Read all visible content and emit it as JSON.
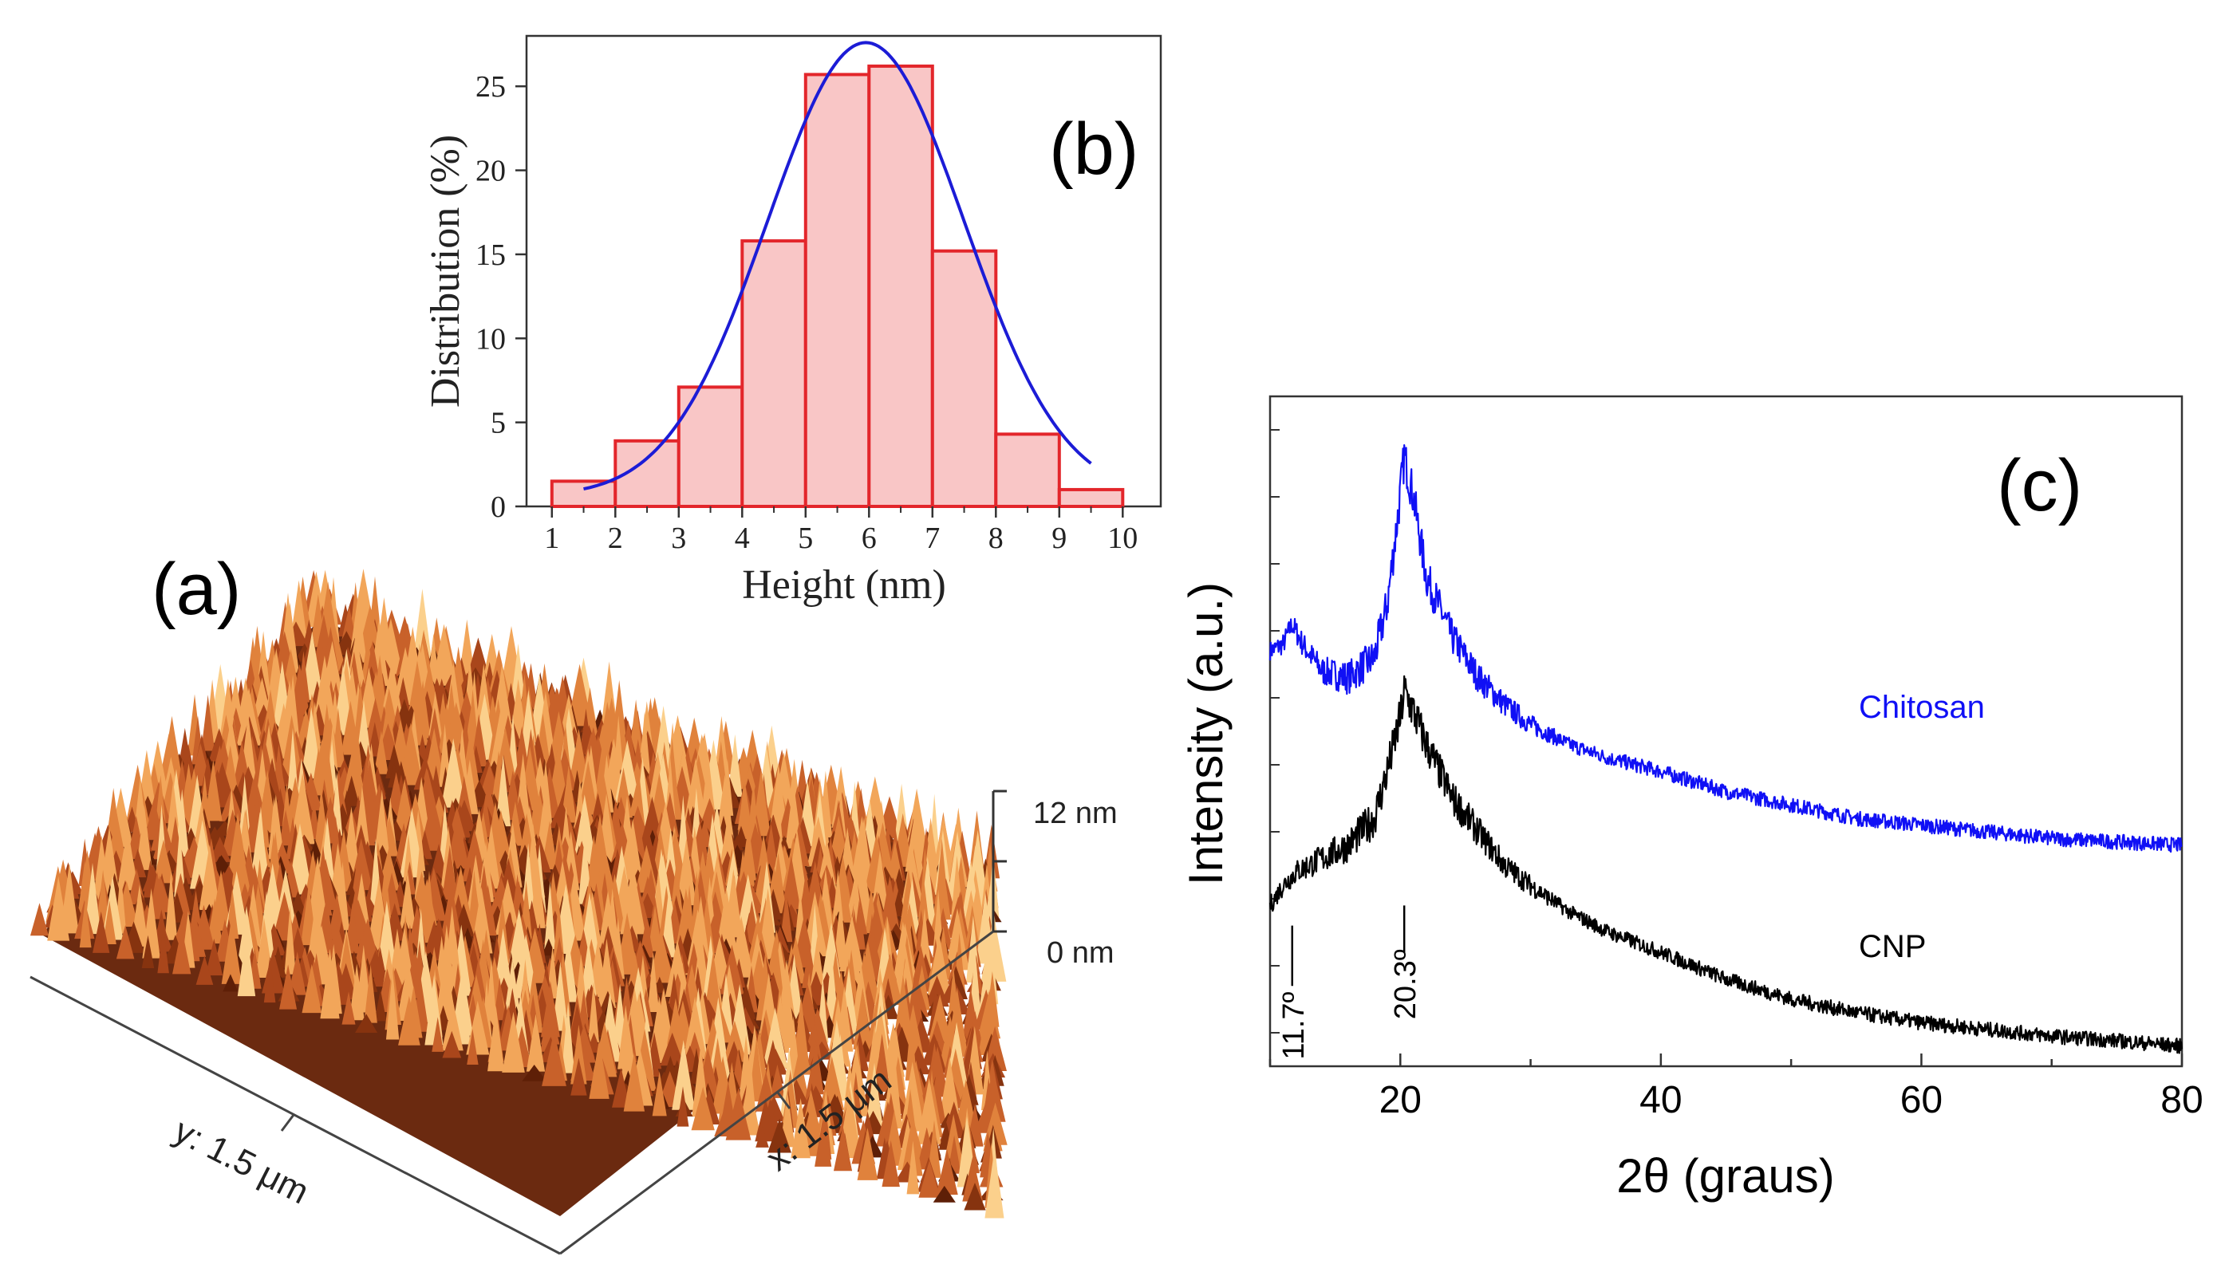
{
  "panels": {
    "a": {
      "label": "(a)",
      "scale_top": "12 nm",
      "scale_bottom": "0 nm",
      "y_axis": "y: 1.5 μm",
      "x_axis": "x: 1.5 μm"
    },
    "b": {
      "label": "(b)"
    },
    "c": {
      "label": "(c)"
    }
  },
  "chart_data": [
    {
      "panel": "b",
      "type": "bar",
      "title": "",
      "xlabel": "Height (nm)",
      "ylabel": "Distribution (%)",
      "xlim": [
        0.6,
        10.6
      ],
      "ylim": [
        0,
        28
      ],
      "xticks": [
        1,
        2,
        3,
        4,
        5,
        6,
        7,
        8,
        9,
        10
      ],
      "yticks": [
        0,
        5,
        10,
        15,
        20,
        25
      ],
      "bins": [
        {
          "from": 1,
          "to": 2,
          "value": 1.5
        },
        {
          "from": 2,
          "to": 3,
          "value": 3.9
        },
        {
          "from": 3,
          "to": 4,
          "value": 7.1
        },
        {
          "from": 4,
          "to": 5,
          "value": 15.8
        },
        {
          "from": 5,
          "to": 6,
          "value": 25.7
        },
        {
          "from": 6,
          "to": 7,
          "value": 26.2
        },
        {
          "from": 7,
          "to": 8,
          "value": 15.2
        },
        {
          "from": 8,
          "to": 9,
          "value": 4.3
        },
        {
          "from": 9,
          "to": 10,
          "value": 1.0
        }
      ],
      "fit": {
        "type": "gaussian",
        "center": 5.95,
        "amplitude": 27.6,
        "sigma": 1.55,
        "baseline": 0.6,
        "x_range": [
          1.5,
          9.5
        ]
      },
      "colors": {
        "bar_fill": "#f9c6c6",
        "bar_edge": "#e3262b",
        "fit": "#1c1cd6"
      }
    },
    {
      "panel": "c",
      "type": "line",
      "title": "",
      "xlabel": "2θ (graus)",
      "ylabel": "Intensity (a.u.)",
      "xlim": [
        10,
        80
      ],
      "xticks": [
        20,
        40,
        60,
        80
      ],
      "ylim": [
        0,
        100
      ],
      "series": [
        {
          "name": "Chitosan",
          "color": "#1010f5",
          "points": [
            [
              10,
              62
            ],
            [
              11,
              63
            ],
            [
              11.7,
              66
            ],
            [
              12.5,
              63
            ],
            [
              14,
              59
            ],
            [
              16,
              58
            ],
            [
              18,
              61
            ],
            [
              19,
              69
            ],
            [
              19.8,
              82
            ],
            [
              20.3,
              91
            ],
            [
              21,
              85
            ],
            [
              22,
              73
            ],
            [
              24,
              64
            ],
            [
              26,
              58
            ],
            [
              28,
              54
            ],
            [
              30,
              51
            ],
            [
              33,
              48
            ],
            [
              36,
              46
            ],
            [
              40,
              44
            ],
            [
              45,
              41
            ],
            [
              50,
              39
            ],
            [
              55,
              37
            ],
            [
              60,
              36
            ],
            [
              65,
              35
            ],
            [
              70,
              34
            ],
            [
              75,
              33.5
            ],
            [
              80,
              33
            ]
          ]
        },
        {
          "name": "CNP",
          "color": "#000000",
          "points": [
            [
              10,
              24
            ],
            [
              11,
              27
            ],
            [
              12,
              29
            ],
            [
              14,
              31
            ],
            [
              16,
              33
            ],
            [
              18,
              37
            ],
            [
              19,
              44
            ],
            [
              20,
              52
            ],
            [
              20.3,
              56
            ],
            [
              21,
              53
            ],
            [
              22,
              48
            ],
            [
              24,
              40
            ],
            [
              26,
              35
            ],
            [
              28,
              30
            ],
            [
              30,
              27
            ],
            [
              33,
              23
            ],
            [
              36,
              20
            ],
            [
              40,
              17
            ],
            [
              45,
              13
            ],
            [
              50,
              10
            ],
            [
              55,
              8
            ],
            [
              60,
              6.5
            ],
            [
              65,
              5.5
            ],
            [
              70,
              4.5
            ],
            [
              75,
              3.8
            ],
            [
              80,
              3
            ]
          ]
        }
      ],
      "annotations": [
        {
          "text": "20.3º",
          "x": 20.3
        },
        {
          "text": "11.7º",
          "x": 11.7
        }
      ],
      "legend": [
        {
          "text": "Chitosan",
          "color": "#1010f5"
        },
        {
          "text": "CNP",
          "color": "#000000"
        }
      ]
    }
  ]
}
